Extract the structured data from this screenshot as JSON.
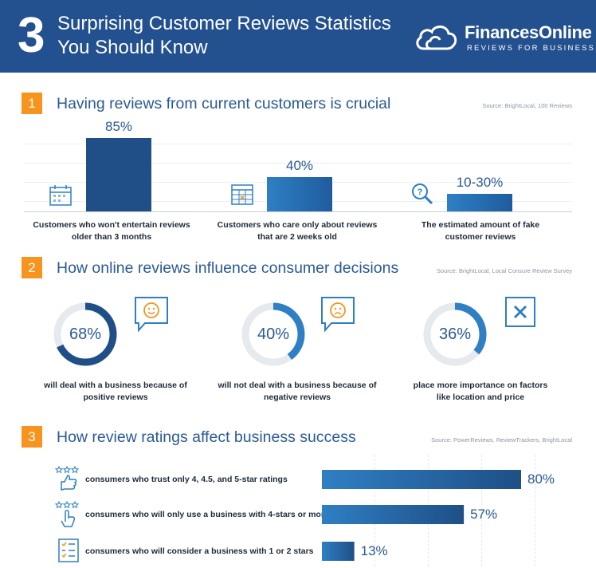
{
  "header": {
    "number": "3",
    "title_line1": "Surprising Customer Reviews Statistics",
    "title_line2": "You Should Know",
    "brand": "FinancesOnline",
    "brand_tagline": "REVIEWS FOR BUSINESS"
  },
  "colors": {
    "header_bg": "#23508f",
    "accent_orange": "#f7941d",
    "bar_dark": "#1f4f86",
    "bar_light": "#2f7fc4",
    "ring_track": "#e6e9ed"
  },
  "sections": [
    {
      "number": "1",
      "title": "Having reviews from current customers is crucial",
      "source": "Source: BrightLocal, 100 Reviews",
      "items": [
        {
          "value_label": "85%",
          "caption_line1": "Customers who won't entertain reviews",
          "caption_line2": "older than 3 months",
          "icon": "calendar-icon"
        },
        {
          "value_label": "40%",
          "caption_line1": "Customers who care only about reviews",
          "caption_line2": "that are 2 weeks old",
          "icon": "calendar-grid-icon"
        },
        {
          "value_label": "10-30%",
          "caption_line1": "The estimated amount of fake",
          "caption_line2": "customer  reviews",
          "icon": "magnifier-icon"
        }
      ]
    },
    {
      "number": "2",
      "title": "How online reviews influence consumer decisions",
      "source": "Source: BrightLocal, Local Consure Review Survey",
      "items": [
        {
          "value_label": "68%",
          "caption_line1": "will deal with a business because of",
          "caption_line2": "positive reviews",
          "icon": "smiley-chat-icon"
        },
        {
          "value_label": "40%",
          "caption_line1": "will not deal with a business because of",
          "caption_line2": "negative reviews",
          "icon": "sad-chat-icon"
        },
        {
          "value_label": "36%",
          "caption_line1": "place more importance on factors",
          "caption_line2": "like location and price",
          "icon": "close-box-icon"
        }
      ]
    },
    {
      "number": "3",
      "title": "How review ratings affect business success",
      "source": "Source: PowerReviews, ReviewTrackers, BrightLocal",
      "items": [
        {
          "text": "consumers who trust only 4, 4.5, and 5-star ratings",
          "value_label": "80%",
          "icon": "stars-thumb-icon"
        },
        {
          "text": "consumers who will only use a business with 4-stars or more",
          "value_label": "57%",
          "icon": "stars-hand-icon"
        },
        {
          "text": "consumers who will consider a business with 1 or 2 stars",
          "value_label": "13%",
          "icon": "checklist-icon"
        }
      ]
    }
  ],
  "chart_data": [
    {
      "type": "bar",
      "title": "Having reviews from current customers is crucial",
      "categories": [
        "Customers who won't entertain reviews older than 3 months",
        "Customers who care only about reviews that are 2 weeks old",
        "The estimated amount of fake customer  reviews"
      ],
      "values": [
        85,
        40,
        20
      ],
      "value_labels": [
        "85%",
        "40%",
        "10-30%"
      ],
      "ylim": [
        0,
        100
      ]
    },
    {
      "type": "pie",
      "title": "How online reviews influence consumer decisions",
      "categories": [
        "will deal with a business because of positive reviews",
        "will not deal with a business because of negative reviews",
        "place more importance on factors like location and price"
      ],
      "values": [
        68,
        40,
        36
      ]
    },
    {
      "type": "bar",
      "orientation": "horizontal",
      "title": "How review ratings affect business success",
      "categories": [
        "consumers who trust only 4, 4.5, and 5-star ratings",
        "consumers who will only use a business with 4-stars or more",
        "consumers who will consider a business with 1 or 2 stars"
      ],
      "values": [
        80,
        57,
        13
      ],
      "xlim": [
        0,
        80
      ]
    }
  ]
}
